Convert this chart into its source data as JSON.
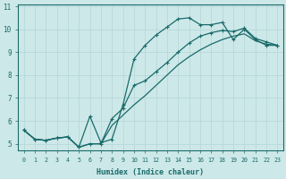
{
  "xlabel": "Humidex (Indice chaleur)",
  "background_color": "#cde8e8",
  "grid_color": "#b8d8d8",
  "line_color": "#1a6b6b",
  "xlim": [
    -0.5,
    23.5
  ],
  "ylim": [
    4.7,
    11.1
  ],
  "xticks": [
    0,
    1,
    2,
    3,
    4,
    5,
    6,
    7,
    8,
    9,
    10,
    11,
    12,
    13,
    14,
    15,
    16,
    17,
    18,
    19,
    20,
    21,
    22,
    23
  ],
  "yticks": [
    5,
    6,
    7,
    8,
    9,
    10,
    11
  ],
  "line1_x": [
    0,
    1,
    2,
    3,
    4,
    5,
    6,
    7,
    8,
    9,
    10,
    11,
    12,
    13,
    14,
    15,
    16,
    17,
    18,
    19,
    20,
    21,
    22,
    23
  ],
  "line1_y": [
    5.6,
    5.2,
    5.15,
    5.25,
    5.3,
    4.85,
    6.2,
    5.05,
    5.2,
    6.7,
    8.7,
    9.3,
    9.75,
    10.1,
    10.45,
    10.5,
    10.2,
    10.2,
    10.3,
    9.55,
    10.0,
    9.55,
    9.3,
    9.3
  ],
  "line2_x": [
    0,
    1,
    2,
    3,
    4,
    5,
    6,
    7,
    8,
    9,
    10,
    11,
    12,
    13,
    14,
    15,
    16,
    17,
    18,
    19,
    20,
    21,
    22,
    23
  ],
  "line2_y": [
    5.6,
    5.2,
    5.15,
    5.25,
    5.3,
    4.85,
    5.0,
    5.0,
    6.1,
    6.55,
    7.55,
    7.75,
    8.15,
    8.55,
    9.0,
    9.4,
    9.7,
    9.85,
    9.95,
    9.9,
    10.05,
    9.6,
    9.45,
    9.3
  ],
  "line3_x": [
    0,
    1,
    2,
    3,
    4,
    5,
    6,
    7,
    8,
    9,
    10,
    11,
    12,
    13,
    14,
    15,
    16,
    17,
    18,
    19,
    20,
    21,
    22,
    23
  ],
  "line3_y": [
    5.6,
    5.2,
    5.15,
    5.25,
    5.3,
    4.85,
    5.0,
    5.0,
    5.8,
    6.25,
    6.7,
    7.1,
    7.55,
    8.0,
    8.45,
    8.8,
    9.1,
    9.35,
    9.55,
    9.7,
    9.8,
    9.5,
    9.35,
    9.3
  ]
}
